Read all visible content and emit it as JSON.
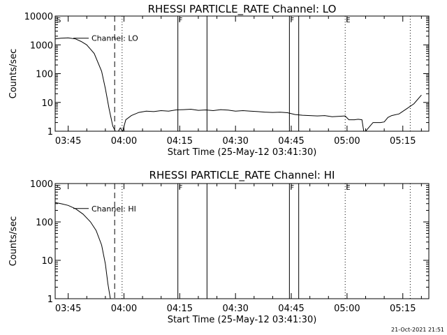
{
  "chart_data": [
    {
      "type": "line",
      "title": "RHESSI PARTICLE_RATE Channel: LO",
      "xlabel": "Start Time (25-May-12 03:41:30)",
      "ylabel": "Counts/sec",
      "y_scale": "log",
      "ylim": [
        1,
        10000
      ],
      "y_ticks": [
        {
          "v": 1,
          "label": "1"
        },
        {
          "v": 10,
          "label": "10"
        },
        {
          "v": 100,
          "label": "100"
        },
        {
          "v": 1000,
          "label": "1000"
        },
        {
          "v": 10000,
          "label": "10000"
        }
      ],
      "xlim": [
        "03:41:30",
        "05:22:00"
      ],
      "x_ticks": [
        "03:45",
        "04:00",
        "04:15",
        "04:30",
        "04:45",
        "05:00",
        "05:15"
      ],
      "series": [
        {
          "name": "Channel: LO",
          "x": [
            "03:41:30",
            "03:43:00",
            "03:45:00",
            "03:47:00",
            "03:48:30",
            "03:50:00",
            "03:52:00",
            "03:54:00",
            "03:55:00",
            "03:56:00",
            "03:57:00",
            "03:57:40",
            "03:58:30",
            "03:59:00",
            "03:59:40",
            "04:00:30",
            "04:02:00",
            "04:04:00",
            "04:06:00",
            "04:08:00",
            "04:10:00",
            "04:12:00",
            "04:14:00",
            "04:16:00",
            "04:18:00",
            "04:20:00",
            "04:22:00",
            "04:24:00",
            "04:26:00",
            "04:28:00",
            "04:30:00",
            "04:32:00",
            "04:34:00",
            "04:36:00",
            "04:38:00",
            "04:40:00",
            "04:42:00",
            "04:44:00",
            "04:46:00",
            "04:48:00",
            "04:50:00",
            "04:52:00",
            "04:54:00",
            "04:56:00",
            "04:58:00",
            "04:59:30",
            "05:00:30",
            "05:02:00",
            "05:03:00",
            "05:04:00",
            "05:04:30",
            "05:05:00",
            "05:07:00",
            "05:09:00",
            "05:10:00",
            "05:11:00",
            "05:12:00",
            "05:14:00",
            "05:16:00",
            "05:18:00",
            "05:20:00"
          ],
          "y": [
            1600,
            1700,
            1750,
            1600,
            1300,
            1000,
            500,
            120,
            30,
            6,
            1.5,
            1,
            1,
            1.3,
            1,
            2.5,
            3.5,
            4.5,
            5,
            4.8,
            5.2,
            5,
            5.5,
            5.6,
            5.8,
            5.3,
            5.5,
            5.2,
            5.6,
            5.4,
            5,
            5.2,
            5,
            4.8,
            4.6,
            4.5,
            4.6,
            4.4,
            3.8,
            3.6,
            3.5,
            3.4,
            3.5,
            3.2,
            3.3,
            3.4,
            2.5,
            2.5,
            2.6,
            2.5,
            1,
            1,
            2,
            2,
            2.1,
            3,
            3.5,
            4,
            6,
            9,
            18
          ]
        }
      ],
      "vlines": [
        {
          "x": "03:57:30",
          "style": "dashed"
        },
        {
          "x": "03:59:30",
          "style": "dotted"
        },
        {
          "x": "04:14:30",
          "style": "solid",
          "label": "F"
        },
        {
          "x": "04:22:20",
          "style": "solid"
        },
        {
          "x": "04:44:30",
          "style": "solid",
          "label": "F"
        },
        {
          "x": "04:47:00",
          "style": "solid"
        },
        {
          "x": "04:59:30",
          "style": "dotted",
          "label": "E"
        },
        {
          "x": "05:17:00",
          "style": "dotted"
        }
      ],
      "marks": [
        {
          "x": "03:41:30",
          "label": "S"
        }
      ]
    },
    {
      "type": "line",
      "title": "RHESSI PARTICLE_RATE Channel: HI",
      "xlabel": "Start Time (25-May-12 03:41:30)",
      "ylabel": "Counts/sec",
      "y_scale": "log",
      "ylim": [
        1,
        1000
      ],
      "y_ticks": [
        {
          "v": 1,
          "label": "1"
        },
        {
          "v": 10,
          "label": "10"
        },
        {
          "v": 100,
          "label": "100"
        },
        {
          "v": 1000,
          "label": "1000"
        }
      ],
      "xlim": [
        "03:41:30",
        "05:22:00"
      ],
      "x_ticks": [
        "03:45",
        "04:00",
        "04:15",
        "04:30",
        "04:45",
        "05:00",
        "05:15"
      ],
      "series": [
        {
          "name": "Channel: HI",
          "x": [
            "03:41:30",
            "03:43:00",
            "03:45:00",
            "03:47:00",
            "03:49:00",
            "03:51:00",
            "03:52:30",
            "03:54:00",
            "03:55:00",
            "03:55:40",
            "03:56:20"
          ],
          "y": [
            320,
            300,
            270,
            220,
            160,
            100,
            60,
            25,
            8,
            2.5,
            1
          ]
        }
      ],
      "vlines": [
        {
          "x": "03:57:30",
          "style": "dashed"
        },
        {
          "x": "03:59:30",
          "style": "dotted"
        },
        {
          "x": "04:14:30",
          "style": "solid",
          "label": "F"
        },
        {
          "x": "04:22:20",
          "style": "solid"
        },
        {
          "x": "04:44:30",
          "style": "solid",
          "label": "F"
        },
        {
          "x": "04:47:00",
          "style": "solid"
        },
        {
          "x": "04:59:30",
          "style": "dotted",
          "label": "E"
        },
        {
          "x": "05:17:00",
          "style": "dotted"
        }
      ],
      "marks": [
        {
          "x": "03:41:30",
          "label": "S"
        }
      ]
    }
  ],
  "footer": {
    "timestamp": "21-Oct-2021 21:51"
  }
}
